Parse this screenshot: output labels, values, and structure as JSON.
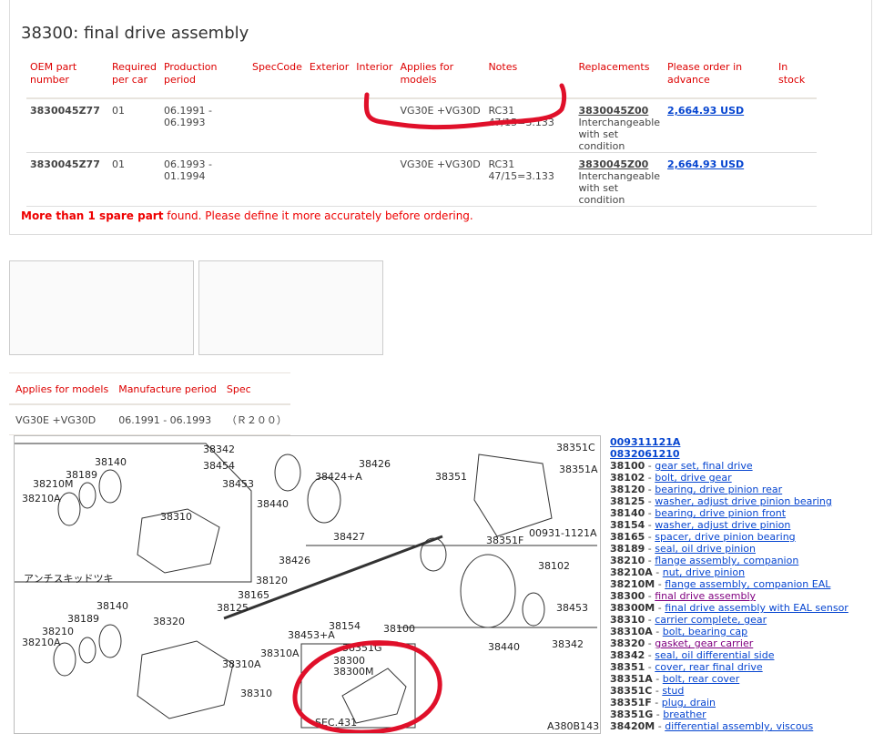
{
  "title": "38300: final drive assembly",
  "columns": [
    "OEM part number",
    "Required per car",
    "Production period",
    "SpecCode",
    "Exterior",
    "Interior",
    "Applies for models",
    "Notes",
    "Replacements",
    "Please order in advance",
    "In stock"
  ],
  "rows": [
    {
      "oem": "3830045Z77",
      "qty": "01",
      "period": "06.1991 - 06.1993",
      "spec": "",
      "exterior": "",
      "interior": "",
      "models": "VG30E +VG30D",
      "notes": "RC31 47/15=3.133",
      "replacement": "3830045Z00",
      "replacement_note": "Interchangeable with set condition",
      "price": "2,664.93 USD",
      "stock": ""
    },
    {
      "oem": "3830045Z77",
      "qty": "01",
      "period": "06.1993 - 01.1994",
      "spec": "",
      "exterior": "",
      "interior": "",
      "models": "VG30E +VG30D",
      "notes": "RC31 47/15=3.133",
      "replacement": "3830045Z00",
      "replacement_note": "Interchangeable with set condition",
      "price": "2,664.93 USD",
      "stock": ""
    }
  ],
  "warning": {
    "bold": "More than 1 spare part",
    "rest": " found. Please define it more accurately before ordering."
  },
  "spec_table": {
    "columns": [
      "Applies for models",
      "Manufacture period",
      "Spec"
    ],
    "row": [
      "VG30E +VG30D",
      "06.1991 - 06.1993",
      "（Ｒ２００）"
    ]
  },
  "diagram": {
    "labels": [
      "38342",
      "38454",
      "38453",
      "38440",
      "38140",
      "38189",
      "38210M",
      "38210A",
      "38310",
      "38351C",
      "38351A",
      "38351",
      "38426",
      "38424+A",
      "38427",
      "38426",
      "38120",
      "38165",
      "38125",
      "38154",
      "38453+A",
      "38100",
      "38102",
      "38453",
      "38440",
      "38342",
      "38140",
      "38189",
      "38210",
      "38210A",
      "38320",
      "38310A",
      "38310A",
      "38310",
      "38351G",
      "38300",
      "38300M",
      "SEC.431",
      "A380B143",
      "00931-1121A",
      "38351F",
      "アンチスキッドツキ"
    ]
  },
  "parts_list": [
    {
      "code": "",
      "name": "009311121A"
    },
    {
      "code": "",
      "name": "0832061210"
    },
    {
      "code": "38100",
      "name": "gear set, final drive"
    },
    {
      "code": "38102",
      "name": "bolt, drive gear"
    },
    {
      "code": "38120",
      "name": "bearing, drive pinion rear"
    },
    {
      "code": "38125",
      "name": "washer, adjust drive pinion bearing"
    },
    {
      "code": "38140",
      "name": "bearing, drive pinion front"
    },
    {
      "code": "38154",
      "name": "washer, adjust drive pinion"
    },
    {
      "code": "38165",
      "name": "spacer, drive pinion bearing"
    },
    {
      "code": "38189",
      "name": "seal, oil drive pinion"
    },
    {
      "code": "38210",
      "name": "flange assembly, companion"
    },
    {
      "code": "38210A",
      "name": "nut, drive pinion"
    },
    {
      "code": "38210M",
      "name": "flange assembly, companion EAL"
    },
    {
      "code": "38300",
      "name": "final drive assembly",
      "visited": true
    },
    {
      "code": "38300M",
      "name": "final drive assembly with EAL sensor"
    },
    {
      "code": "38310",
      "name": "carrier complete, gear"
    },
    {
      "code": "38310A",
      "name": "bolt, bearing cap"
    },
    {
      "code": "38320",
      "name": "gasket, gear carrier",
      "visited": true
    },
    {
      "code": "38342",
      "name": "seal, oil differential side"
    },
    {
      "code": "38351",
      "name": "cover, rear final drive"
    },
    {
      "code": "38351A",
      "name": "bolt, rear cover"
    },
    {
      "code": "38351C",
      "name": "stud"
    },
    {
      "code": "38351F",
      "name": "plug, drain"
    },
    {
      "code": "38351G",
      "name": "breather"
    },
    {
      "code": "38420M",
      "name": "differential assembly, viscous"
    }
  ],
  "colors": {
    "header": "#dd0000",
    "link": "#0645d0",
    "visited": "#800080",
    "annotation": "#e0102a"
  }
}
